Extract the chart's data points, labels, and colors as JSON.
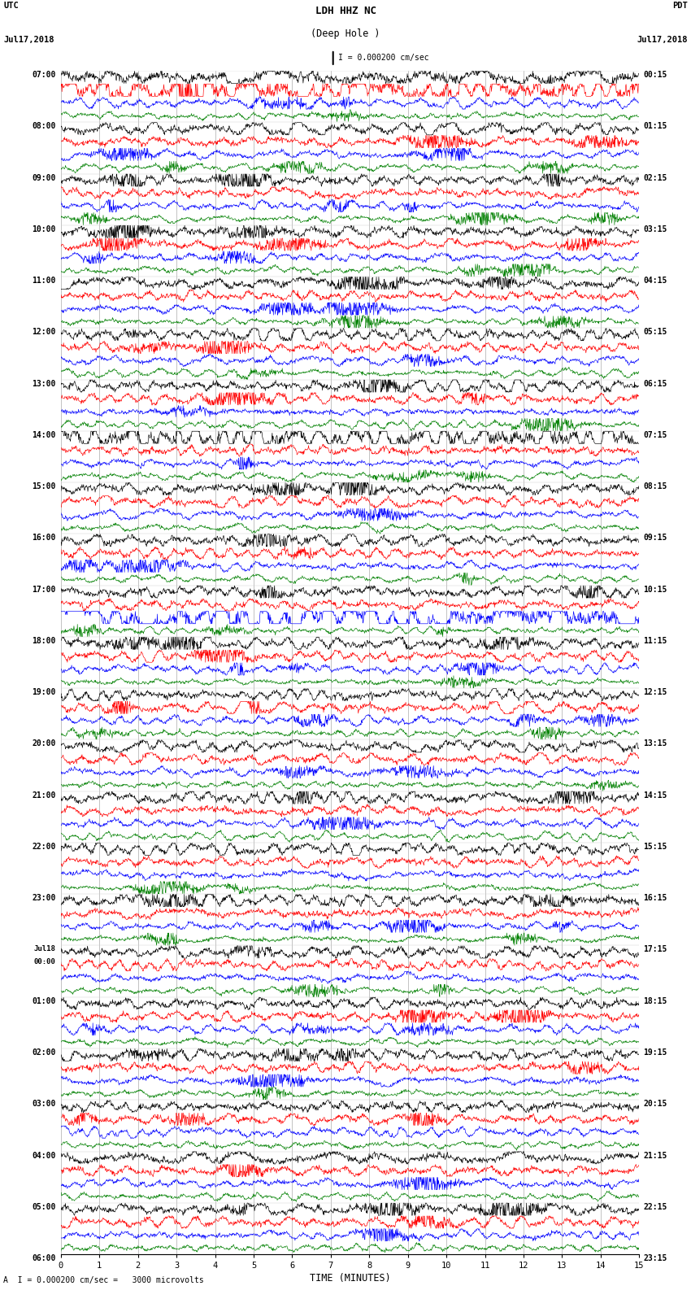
{
  "title_line1": "LDH HHZ NC",
  "title_line2": "(Deep Hole )",
  "title_line3": "I = 0.000200 cm/sec",
  "left_header_line1": "UTC",
  "left_header_line2": "Jul17,2018",
  "right_header_line1": "PDT",
  "right_header_line2": "Jul17,2018",
  "xlabel": "TIME (MINUTES)",
  "footnote": "A  I = 0.000200 cm/sec =   3000 microvolts",
  "utc_labels": [
    "07:00",
    "",
    "",
    "",
    "08:00",
    "",
    "",
    "",
    "09:00",
    "",
    "",
    "",
    "10:00",
    "",
    "",
    "",
    "11:00",
    "",
    "",
    "",
    "12:00",
    "",
    "",
    "",
    "13:00",
    "",
    "",
    "",
    "14:00",
    "",
    "",
    "",
    "15:00",
    "",
    "",
    "",
    "16:00",
    "",
    "",
    "",
    "17:00",
    "",
    "",
    "",
    "18:00",
    "",
    "",
    "",
    "19:00",
    "",
    "",
    "",
    "20:00",
    "",
    "",
    "",
    "21:00",
    "",
    "",
    "",
    "22:00",
    "",
    "",
    "",
    "23:00",
    "",
    "",
    "",
    "Jul18",
    "00:00",
    "",
    "",
    "01:00",
    "",
    "",
    "",
    "02:00",
    "",
    "",
    "",
    "03:00",
    "",
    "",
    "",
    "04:00",
    "",
    "",
    "",
    "05:00",
    "",
    "",
    "",
    "06:00",
    "",
    ""
  ],
  "pdt_labels": [
    "00:15",
    "",
    "",
    "",
    "01:15",
    "",
    "",
    "",
    "02:15",
    "",
    "",
    "",
    "03:15",
    "",
    "",
    "",
    "04:15",
    "",
    "",
    "",
    "05:15",
    "",
    "",
    "",
    "06:15",
    "",
    "",
    "",
    "07:15",
    "",
    "",
    "",
    "08:15",
    "",
    "",
    "",
    "09:15",
    "",
    "",
    "",
    "10:15",
    "",
    "",
    "",
    "11:15",
    "",
    "",
    "",
    "12:15",
    "",
    "",
    "",
    "13:15",
    "",
    "",
    "",
    "14:15",
    "",
    "",
    "",
    "15:15",
    "",
    "",
    "",
    "16:15",
    "",
    "",
    "",
    "17:15",
    "",
    "",
    "",
    "18:15",
    "",
    "",
    "",
    "19:15",
    "",
    "",
    "",
    "20:15",
    "",
    "",
    "",
    "21:15",
    "",
    "",
    "",
    "22:15",
    "",
    "",
    "",
    "23:15",
    "",
    ""
  ],
  "n_rows": 23,
  "n_traces_per_row": 4,
  "trace_colors": [
    "black",
    "red",
    "blue",
    "green"
  ],
  "x_min": 0,
  "x_max": 15,
  "x_ticks": [
    0,
    1,
    2,
    3,
    4,
    5,
    6,
    7,
    8,
    9,
    10,
    11,
    12,
    13,
    14,
    15
  ],
  "noise_scales": [
    0.32,
    0.28,
    0.22,
    0.18
  ],
  "bg_color": "white",
  "grid_color": "#aaaaaa",
  "fig_width": 8.5,
  "fig_height": 16.13,
  "dpi": 100
}
